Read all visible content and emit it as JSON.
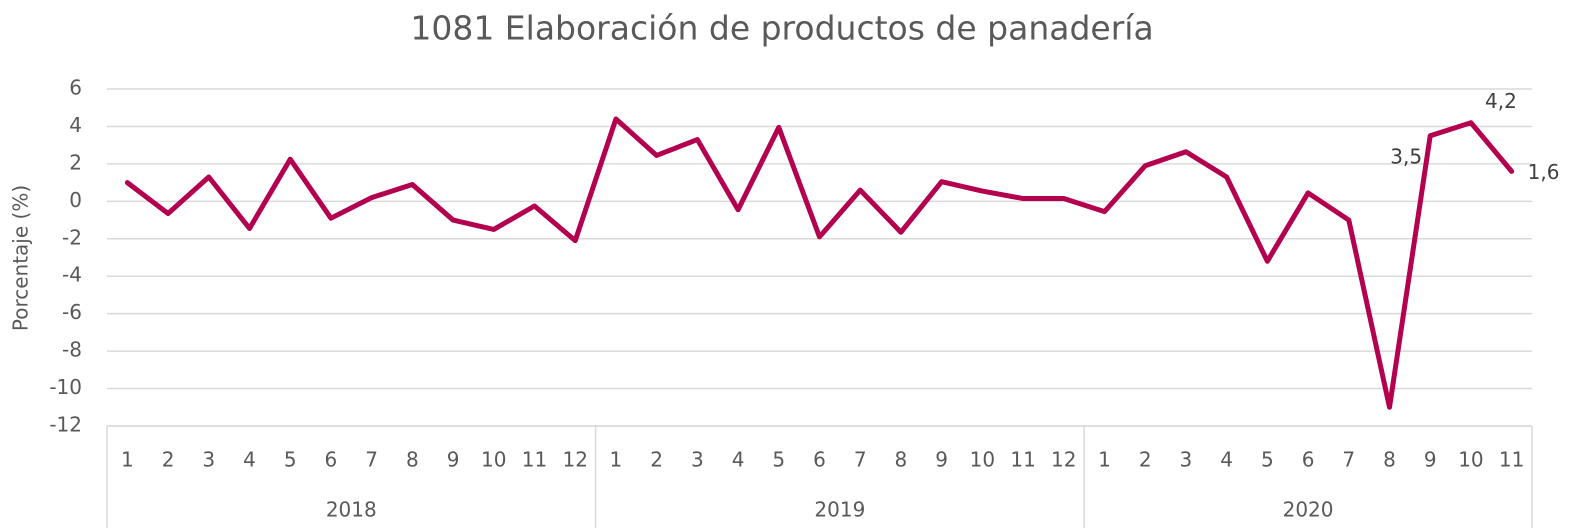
{
  "chart_data": {
    "type": "line",
    "title": "1081 Elaboración de productos de panadería",
    "y_label": "Porcentaje (%)",
    "groups": [
      {
        "name": "2018",
        "categories": [
          "1",
          "2",
          "3",
          "4",
          "5",
          "6",
          "7",
          "8",
          "9",
          "10",
          "11",
          "12"
        ]
      },
      {
        "name": "2019",
        "categories": [
          "1",
          "2",
          "3",
          "4",
          "5",
          "6",
          "7",
          "8",
          "9",
          "10",
          "11",
          "12"
        ]
      },
      {
        "name": "2020",
        "categories": [
          "1",
          "2",
          "3",
          "4",
          "5",
          "6",
          "7",
          "8",
          "9",
          "10",
          "11"
        ]
      }
    ],
    "values": [
      1.0,
      -0.65,
      1.3,
      -1.45,
      2.25,
      -0.9,
      0.2,
      0.9,
      -1.0,
      -1.5,
      -0.25,
      -2.1,
      4.4,
      2.45,
      3.3,
      -0.45,
      3.95,
      -1.9,
      0.6,
      -1.65,
      1.05,
      0.55,
      0.15,
      0.15,
      -0.55,
      1.9,
      2.65,
      1.3,
      -3.2,
      0.45,
      -1.0,
      -11.0,
      3.5,
      4.2,
      1.6
    ],
    "value_labels": [
      null,
      null,
      null,
      null,
      null,
      null,
      null,
      null,
      null,
      null,
      null,
      null,
      null,
      null,
      null,
      null,
      null,
      null,
      null,
      null,
      null,
      null,
      null,
      null,
      null,
      null,
      null,
      null,
      null,
      null,
      null,
      null,
      "3,5",
      "4,2",
      "1,6"
    ],
    "color": "#b3004f",
    "ylim": [
      -12,
      6
    ],
    "yticks": [
      -12,
      -10,
      -8,
      -6,
      -4,
      -2,
      0,
      2,
      4,
      6
    ],
    "grid": true
  }
}
